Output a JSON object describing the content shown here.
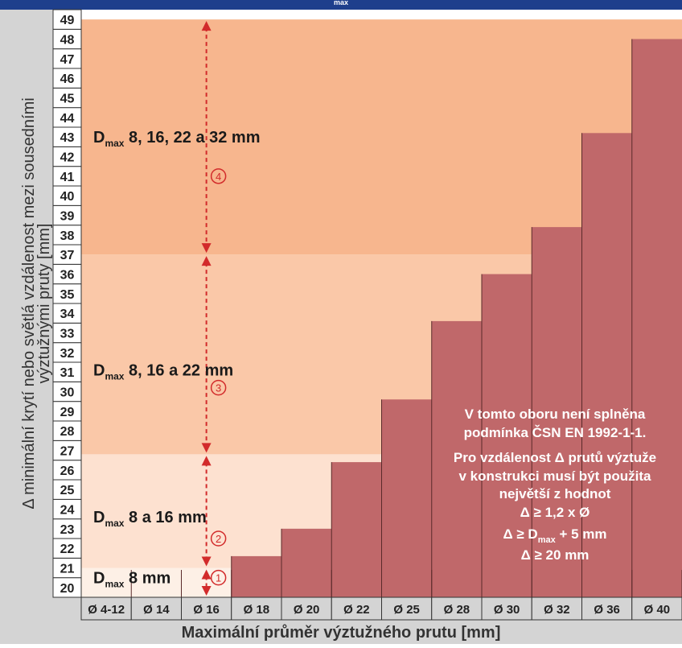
{
  "header": {
    "text": "max"
  },
  "chart_data": {
    "type": "bar",
    "ylabel_line1": "Δ minimální krytí nebo světlá vzdálenost mezi sousedními",
    "ylabel_line2": "výztužnými pruty  [mm]",
    "xlabel": "Maximální průměr výztužného prutu [mm]",
    "ylim": [
      20,
      49
    ],
    "y_ticks": [
      "20",
      "21",
      "22",
      "23",
      "24",
      "25",
      "26",
      "27",
      "28",
      "29",
      "30",
      "31",
      "32",
      "33",
      "34",
      "35",
      "36",
      "37",
      "38",
      "39",
      "40",
      "41",
      "42",
      "43",
      "44",
      "45",
      "46",
      "47",
      "48",
      "49"
    ],
    "categories": [
      "Ø 4-12",
      "Ø 14",
      "Ø 16",
      "Ø 18",
      "Ø 20",
      "Ø 22",
      "Ø 25",
      "Ø 28",
      "Ø 30",
      "Ø 32",
      "Ø 36",
      "Ø 40"
    ],
    "values": [
      20,
      20,
      20,
      21.6,
      23,
      26.4,
      29.6,
      33.6,
      36,
      38.4,
      43.2,
      48
    ],
    "bar_color": "#c0686a",
    "zones": [
      {
        "from": 20,
        "to": 21,
        "color": "#fdf0e6",
        "label_main": "D",
        "label_sub": "max",
        "label_text": " 8 mm",
        "marker": "①",
        "label_y": 20.5,
        "marker_y": 20.5
      },
      {
        "from": 21,
        "to": 26.8,
        "color": "#fde1d0",
        "label_main": "D",
        "label_sub": "max",
        "label_text": " 8 a 16 mm",
        "marker": "②",
        "label_y": 23.6,
        "marker_y": 22.5
      },
      {
        "from": 26.8,
        "to": 37,
        "color": "#fac8a8",
        "label_main": "D",
        "label_sub": "max",
        "label_text": "  8, 16 a 22 mm",
        "marker": "③",
        "label_y": 31.1,
        "marker_y": 30.2
      },
      {
        "from": 37,
        "to": 49,
        "color": "#f7b68e",
        "label_main": "D",
        "label_sub": "max",
        "label_text": "  8, 16, 22 a 32 mm",
        "marker": "④",
        "label_y": 43.0,
        "marker_y": 41.0
      }
    ],
    "arrow_color": "#d22b2b",
    "notes": {
      "line1": "V tomto oboru není splněna",
      "line2": "podmínka ČSN EN 1992-1-1.",
      "line3": "Pro vzdálenost Δ prutů výztuže",
      "line4": "v konstrukci musí být použita",
      "line5": "největší z hodnot",
      "f1": "Δ ≥  1,2 x Ø",
      "f2_main": "Δ ≥ D",
      "f2_sub": "max",
      "f2_rest": " + 5 mm",
      "f3": "Δ ≥ 20 mm"
    },
    "colors": {
      "header": "#1e3f8c",
      "gray": "#d4d4d4",
      "tick_bg": "#ffffff",
      "grid": "#333333"
    }
  }
}
